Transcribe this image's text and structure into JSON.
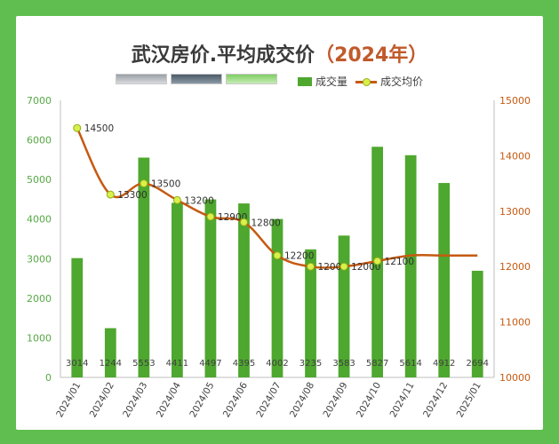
{
  "title": {
    "main": "武汉房价.平均成交价",
    "year": "（2024年）"
  },
  "legend": {
    "bar_label": "成交量",
    "line_label": "成交均价"
  },
  "colors": {
    "bar": "#4ea72e",
    "line": "#c55a11",
    "marker": "#d9f04a",
    "left_axis": "#56a944",
    "right_axis": "#c55a11"
  },
  "chart_data": {
    "type": "bar",
    "categories": [
      "2024/01",
      "2024/02",
      "2024/03",
      "2024/04",
      "2024/05",
      "2024/06",
      "2024/07",
      "2024/08",
      "2024/09",
      "2024/10",
      "2024/11",
      "2024/12",
      "2025/01"
    ],
    "series": [
      {
        "name": "成交量",
        "type": "bar",
        "axis": "left",
        "values": [
          3014,
          1244,
          5553,
          4411,
          4497,
          4395,
          4002,
          3235,
          3583,
          5827,
          5614,
          4912,
          2694
        ]
      },
      {
        "name": "成交均价",
        "type": "line",
        "axis": "right",
        "values": [
          14500,
          13300,
          13500,
          13200,
          12900,
          12800,
          12200,
          12000,
          12000,
          12100,
          12200,
          12200,
          12200
        ],
        "labels": [
          "14500",
          "13300",
          "13500",
          "13200",
          "12900",
          "12800",
          "12200",
          "12000",
          "12000",
          "12100",
          "",
          "",
          ""
        ]
      }
    ],
    "left_axis": {
      "ylim": [
        0,
        7000
      ],
      "ticks": [
        "0",
        "1000",
        "2000",
        "3000",
        "4000",
        "5000",
        "6000",
        "7000"
      ]
    },
    "right_axis": {
      "ylim": [
        10000,
        15000
      ],
      "ticks": [
        "10000",
        "11000",
        "12000",
        "13000",
        "14000",
        "15000"
      ]
    },
    "legend_position": "top",
    "grid": false
  }
}
